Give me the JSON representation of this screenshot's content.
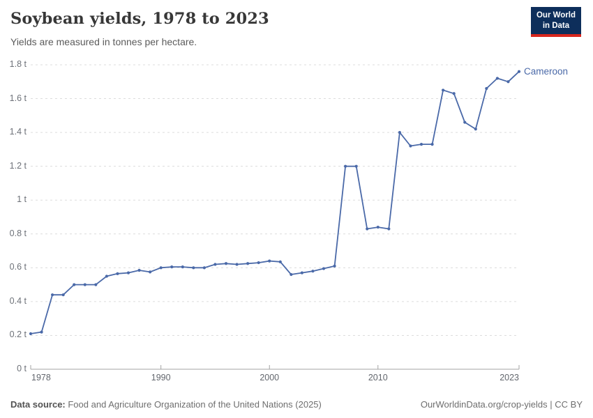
{
  "header": {
    "title": "Soybean yields, 1978 to 2023",
    "subtitle": "Yields are measured in tonnes per hectare.",
    "logo": {
      "line1": "Our World",
      "line2": "in Data",
      "bg_color": "#0d2e5b",
      "accent_color": "#d8261d"
    }
  },
  "chart_data": {
    "type": "line",
    "title": "Soybean yields, 1978 to 2023",
    "unit": "tonnes per hectare",
    "xlim": [
      1978,
      2023
    ],
    "ylim": [
      0,
      1.8
    ],
    "grid": "horizontal-dashed",
    "legend_position": "end-of-line-label",
    "x_ticks": [
      1978,
      1990,
      2000,
      2010,
      2023
    ],
    "x_tick_labels": [
      "1978",
      "1990",
      "2000",
      "2010",
      "2023"
    ],
    "y_ticks": [
      0,
      0.2,
      0.4,
      0.6,
      0.8,
      1,
      1.2,
      1.4,
      1.6,
      1.8
    ],
    "y_tick_labels": [
      "0 t",
      "0.2 t",
      "0.4 t",
      "0.6 t",
      "0.8 t",
      "1 t",
      "1.2 t",
      "1.4 t",
      "1.6 t",
      "1.8 t"
    ],
    "series": [
      {
        "name": "Cameroon",
        "color": "#4a69a8",
        "x": [
          1978,
          1979,
          1980,
          1981,
          1982,
          1983,
          1984,
          1985,
          1986,
          1987,
          1988,
          1989,
          1990,
          1991,
          1992,
          1993,
          1994,
          1995,
          1996,
          1997,
          1998,
          1999,
          2000,
          2001,
          2002,
          2003,
          2004,
          2005,
          2006,
          2007,
          2008,
          2009,
          2010,
          2011,
          2012,
          2013,
          2014,
          2015,
          2016,
          2017,
          2018,
          2019,
          2020,
          2021,
          2022,
          2023
        ],
        "values": [
          0.21,
          0.22,
          0.44,
          0.44,
          0.5,
          0.5,
          0.5,
          0.55,
          0.565,
          0.57,
          0.585,
          0.575,
          0.6,
          0.605,
          0.605,
          0.6,
          0.6,
          0.62,
          0.625,
          0.62,
          0.625,
          0.63,
          0.64,
          0.635,
          0.56,
          0.57,
          0.58,
          0.595,
          0.61,
          1.2,
          1.2,
          0.83,
          0.84,
          0.83,
          1.4,
          1.32,
          1.33,
          1.33,
          1.65,
          1.63,
          1.46,
          1.42,
          1.66,
          1.72,
          1.7,
          1.76
        ]
      }
    ]
  },
  "footer": {
    "source_label": "Data source:",
    "source_text": " Food and Agriculture Organization of the United Nations (2025)",
    "credit": "OurWorldinData.org/crop-yields | CC BY"
  }
}
